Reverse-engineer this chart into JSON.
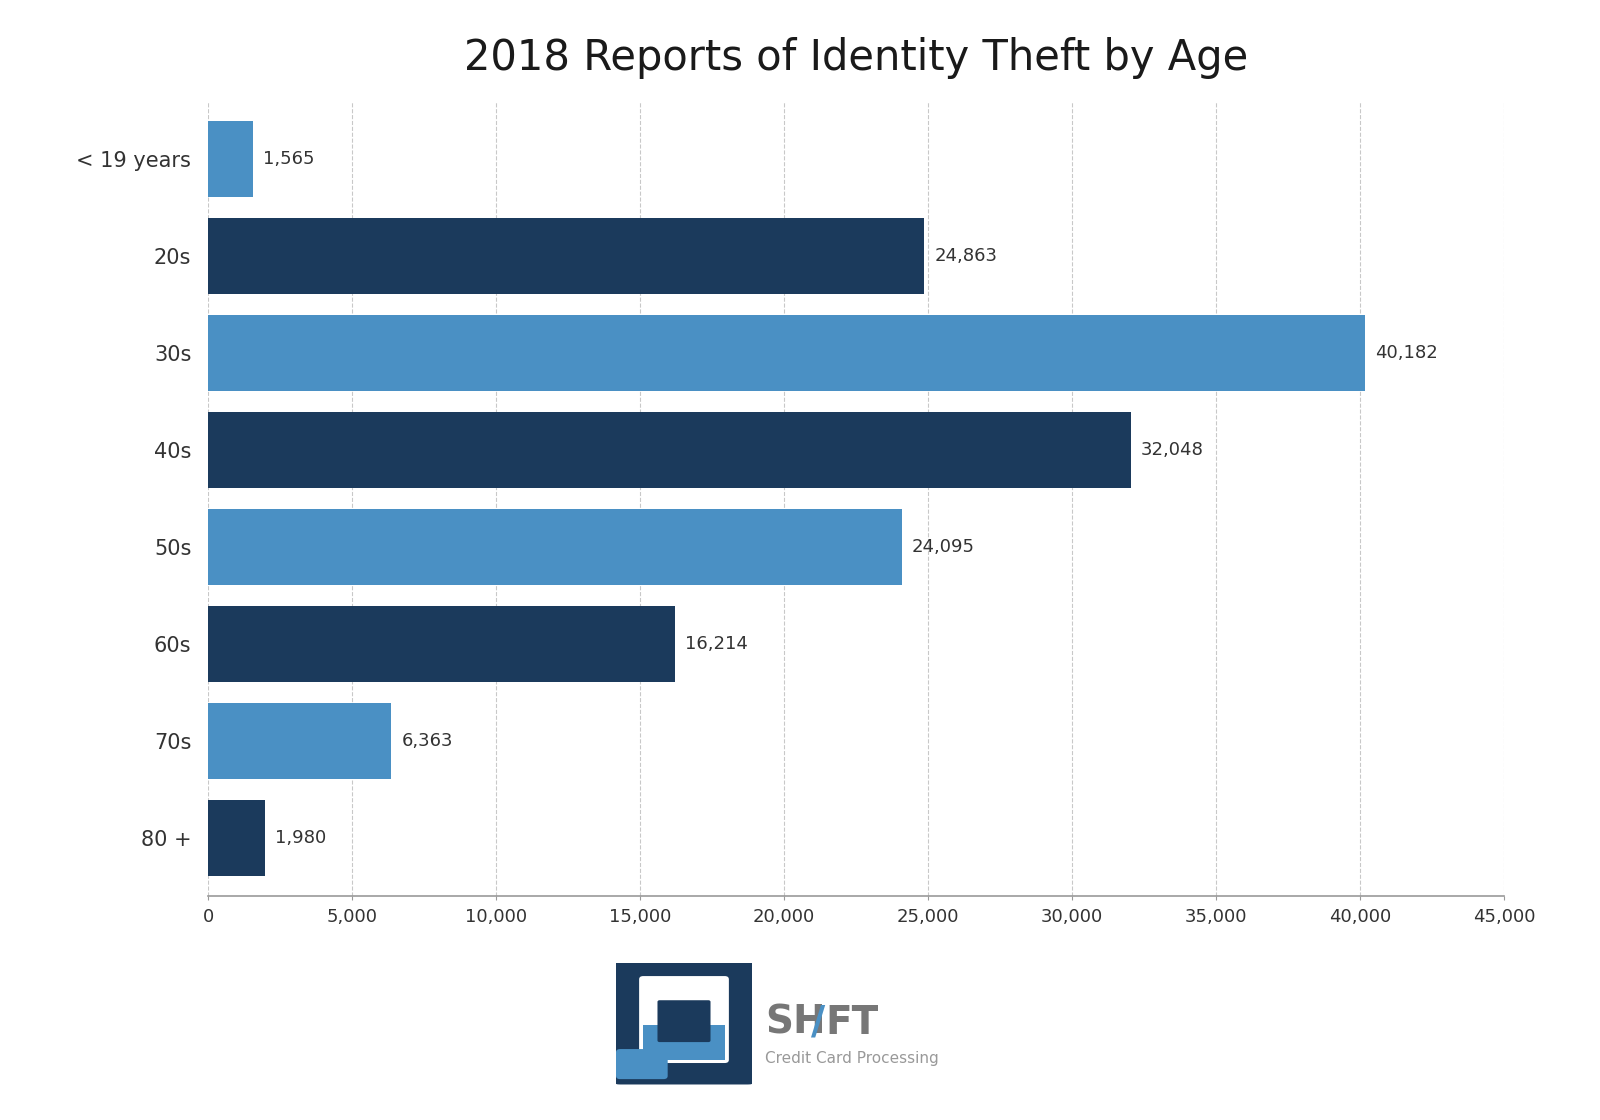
{
  "title": "2018 Reports of Identity Theft by Age",
  "categories": [
    "< 19 years",
    "20s",
    "30s",
    "40s",
    "50s",
    "60s",
    "70s",
    "80 +"
  ],
  "values": [
    1565,
    24863,
    40182,
    32048,
    24095,
    16214,
    6363,
    1980
  ],
  "labels": [
    "1,565",
    "24,863",
    "40,182",
    "32,048",
    "24,095",
    "16,214",
    "6,363",
    "1,980"
  ],
  "colors": [
    "#4a90c4",
    "#1b3a5c",
    "#4a90c4",
    "#1b3a5c",
    "#4a90c4",
    "#1b3a5c",
    "#4a90c4",
    "#1b3a5c"
  ],
  "xlim": [
    0,
    45000
  ],
  "xticks": [
    0,
    5000,
    10000,
    15000,
    20000,
    25000,
    30000,
    35000,
    40000,
    45000
  ],
  "xtick_labels": [
    "0",
    "5,000",
    "10,000",
    "15,000",
    "20,000",
    "25,000",
    "30,000",
    "35,000",
    "40,000",
    "45,000"
  ],
  "title_fontsize": 30,
  "label_fontsize": 13,
  "tick_fontsize": 13,
  "ytick_fontsize": 15,
  "background_color": "#ffffff",
  "grid_color": "#bbbbbb",
  "bar_height": 0.78,
  "logo_dark": "#1b3a5c",
  "logo_light": "#4a90c4",
  "logo_text_color": "#777777",
  "logo_slash_color": "#4a90c4",
  "logo_subtitle_color": "#999999"
}
